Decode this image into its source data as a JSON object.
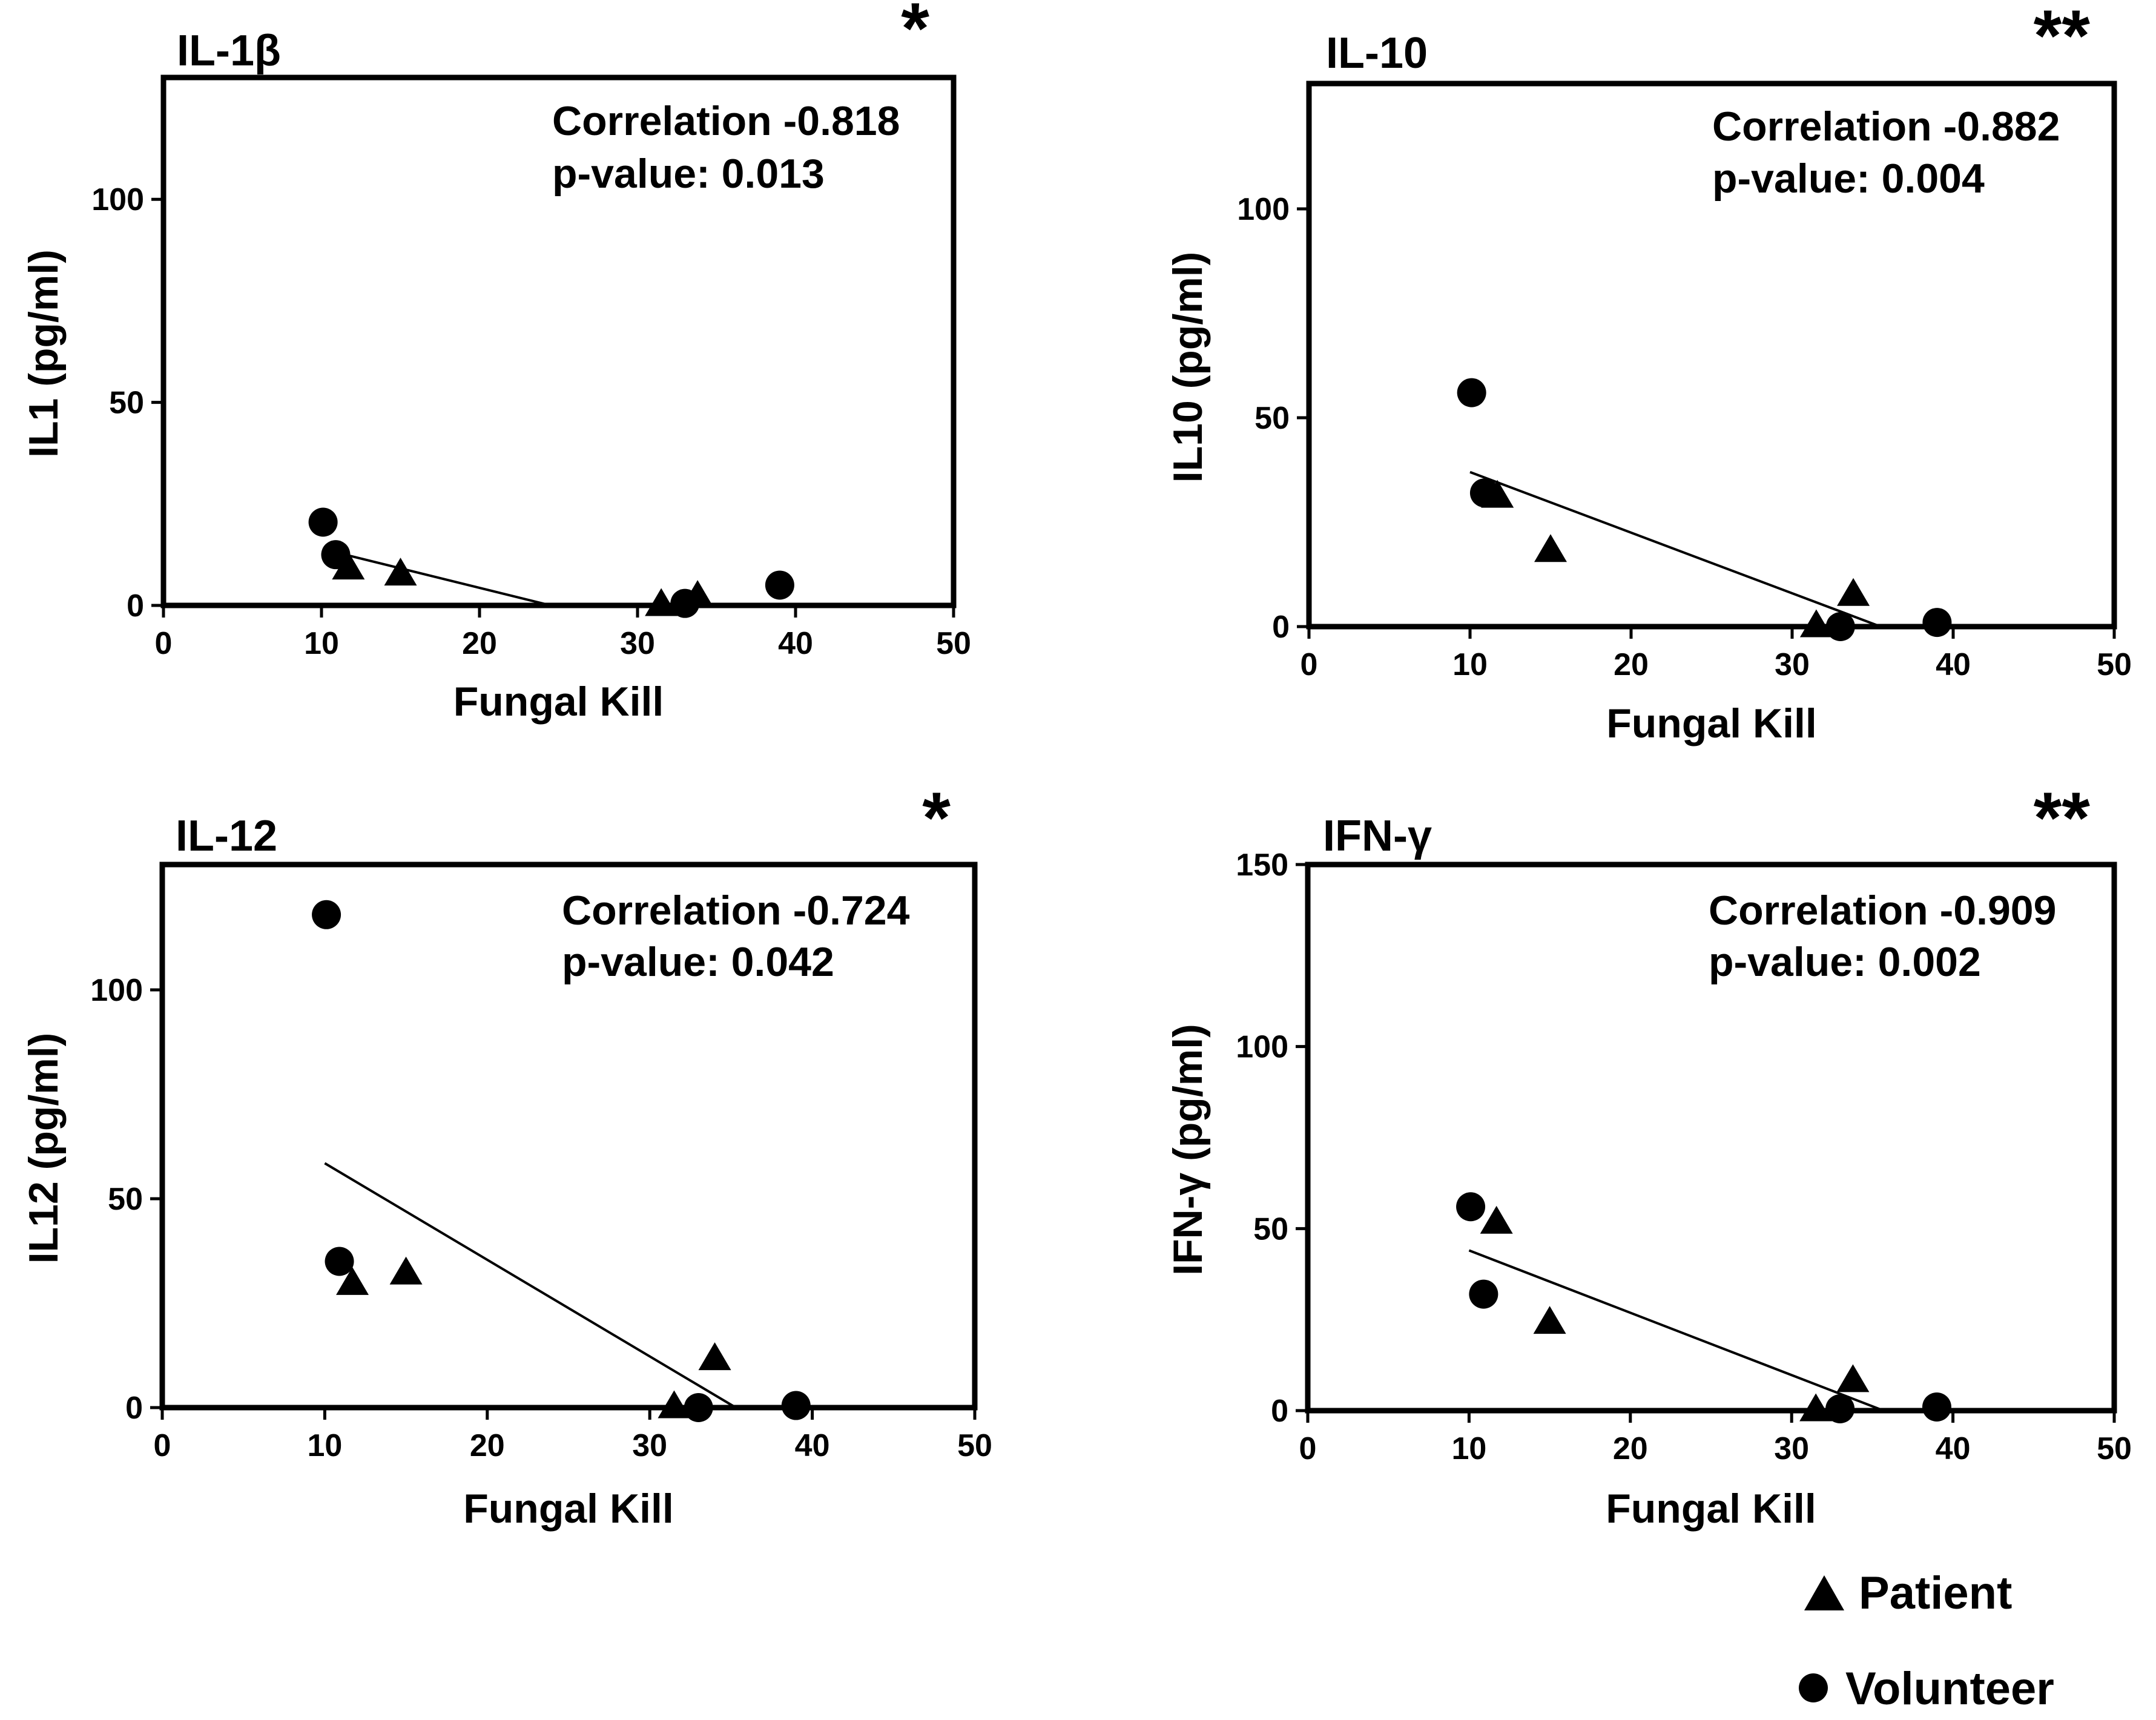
{
  "figure": {
    "legend": [
      {
        "label": "Patient",
        "marker": "triangle"
      },
      {
        "label": "Volunteer",
        "marker": "circle"
      }
    ],
    "colors": {
      "ink": "#000000",
      "background": "#ffffff"
    }
  },
  "chart_data": [
    {
      "type": "scatter",
      "title": "IL-1β",
      "significance": "*",
      "xlabel": "Fungal Kill",
      "ylabel": "IL1 (pg/ml)",
      "xlim": [
        0,
        50
      ],
      "ylim": [
        0,
        130
      ],
      "xticks": [
        0,
        10,
        20,
        30,
        40,
        50
      ],
      "yticks": [
        0,
        50,
        100
      ],
      "correlation_label": "Correlation -0.818",
      "pvalue_label": "p-value: 0.013",
      "series": [
        {
          "name": "Patient",
          "marker": "triangle",
          "points": [
            [
              11.7,
              9
            ],
            [
              15,
              7.5
            ],
            [
              31.5,
              0
            ],
            [
              33.8,
              2
            ]
          ]
        },
        {
          "name": "Volunteer",
          "marker": "circle",
          "points": [
            [
              10.1,
              20.5
            ],
            [
              10.9,
              12.5
            ],
            [
              33,
              0.5
            ],
            [
              39,
              5
            ]
          ]
        }
      ],
      "fit_line": [
        [
          11.5,
          12.5
        ],
        [
          24.5,
          0
        ]
      ]
    },
    {
      "type": "scatter",
      "title": "IL-10",
      "significance": "**",
      "xlabel": "Fungal Kill",
      "ylabel": "IL10 (pg/ml)",
      "xlim": [
        0,
        50
      ],
      "ylim": [
        0,
        130
      ],
      "xticks": [
        0,
        10,
        20,
        30,
        40,
        50
      ],
      "yticks": [
        0,
        50,
        100
      ],
      "correlation_label": "Correlation -0.882",
      "pvalue_label": "p-value: 0.004",
      "series": [
        {
          "name": "Patient",
          "marker": "triangle",
          "points": [
            [
              11.7,
              31
            ],
            [
              15,
              18
            ],
            [
              31.5,
              0
            ],
            [
              33.8,
              7.5
            ]
          ]
        },
        {
          "name": "Volunteer",
          "marker": "circle",
          "points": [
            [
              10.1,
              56
            ],
            [
              10.9,
              32
            ],
            [
              33,
              0
            ],
            [
              39,
              1
            ]
          ]
        }
      ],
      "fit_line": [
        [
          10,
          37
        ],
        [
          35.5,
          0
        ]
      ]
    },
    {
      "type": "scatter",
      "title": "IL-12",
      "significance": "*",
      "xlabel": "Fungal Kill",
      "ylabel": "IL12 (pg/ml)",
      "xlim": [
        0,
        50
      ],
      "ylim": [
        0,
        130
      ],
      "xticks": [
        0,
        10,
        20,
        30,
        40,
        50
      ],
      "yticks": [
        0,
        50,
        100
      ],
      "correlation_label": "Correlation -0.724",
      "pvalue_label": "p-value: 0.042",
      "series": [
        {
          "name": "Patient",
          "marker": "triangle",
          "points": [
            [
              11.7,
              29.5
            ],
            [
              15,
              32
            ],
            [
              31.5,
              0
            ],
            [
              34,
              11.5
            ]
          ]
        },
        {
          "name": "Volunteer",
          "marker": "circle",
          "points": [
            [
              10.1,
              118
            ],
            [
              10.9,
              35
            ],
            [
              33,
              0
            ],
            [
              39,
              0.5
            ]
          ]
        }
      ],
      "fit_line": [
        [
          10,
          58.5
        ],
        [
          35.3,
          0
        ]
      ]
    },
    {
      "type": "scatter",
      "title": "IFN-γ",
      "significance": "**",
      "xlabel": "Fungal Kill",
      "ylabel": "IFN-γ (pg/ml)",
      "xlim": [
        0,
        50
      ],
      "ylim": [
        0,
        150
      ],
      "xticks": [
        0,
        10,
        20,
        30,
        40,
        50
      ],
      "yticks": [
        0,
        50,
        100,
        150
      ],
      "correlation_label": "Correlation -0.909",
      "pvalue_label": "p-value: 0.002",
      "series": [
        {
          "name": "Patient",
          "marker": "triangle",
          "points": [
            [
              11.7,
              51.5
            ],
            [
              15,
              24
            ],
            [
              31.5,
              0
            ],
            [
              33.8,
              8
            ]
          ]
        },
        {
          "name": "Volunteer",
          "marker": "circle",
          "points": [
            [
              10.1,
              56
            ],
            [
              10.9,
              32
            ],
            [
              33,
              0.5
            ],
            [
              39,
              1
            ]
          ]
        }
      ],
      "fit_line": [
        [
          10,
          44
        ],
        [
          35.7,
          0
        ]
      ]
    }
  ]
}
